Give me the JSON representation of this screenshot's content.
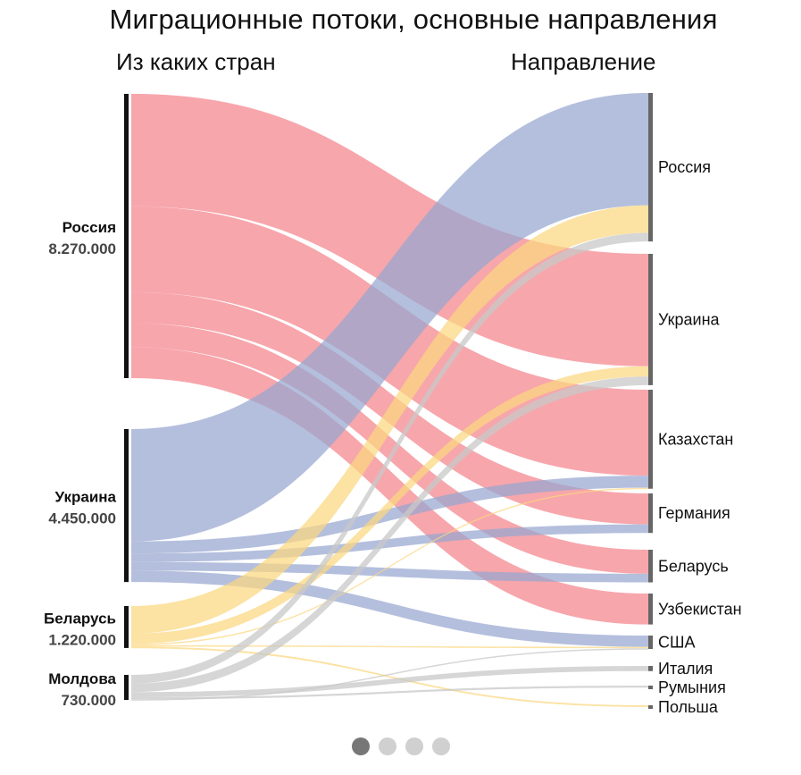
{
  "header": {
    "title": "Миграционные потоки, основные направления",
    "left_column": "Из каких стран",
    "right_column": "Направление"
  },
  "colors": {
    "Россия": "#f4848c",
    "Украина": "#97a6d0",
    "Беларусь": "#fbd77f",
    "Молдова": "#c8c8c8",
    "bar_source": "#111111",
    "bar_target": "#666666",
    "pager_active": "#777777",
    "pager_inactive": "#d0d0d0"
  },
  "chart_data": {
    "type": "sankey",
    "title": "Миграционные потоки, основные направления",
    "sources": [
      {
        "name": "Россия",
        "label": "Россия",
        "value_label": "8.270.000",
        "value": 8270000
      },
      {
        "name": "Украина",
        "label": "Украина",
        "value_label": "4.450.000",
        "value": 4450000
      },
      {
        "name": "Беларусь",
        "label": "Беларусь",
        "value_label": "1.220.000",
        "value": 1220000
      },
      {
        "name": "Молдова",
        "label": "Молдова",
        "value_label": "730.000",
        "value": 730000
      }
    ],
    "targets": [
      "Россия",
      "Украина",
      "Казахстан",
      "Германия",
      "Беларусь",
      "Узбекистан",
      "США",
      "Италия",
      "Румыния",
      "Польша"
    ],
    "flows": [
      {
        "from": "Россия",
        "to": "Украина",
        "value": 3270000
      },
      {
        "from": "Россия",
        "to": "Казахстан",
        "value": 2500000
      },
      {
        "from": "Россия",
        "to": "Германия",
        "value": 900000
      },
      {
        "from": "Россия",
        "to": "Беларусь",
        "value": 700000
      },
      {
        "from": "Россия",
        "to": "Узбекистан",
        "value": 900000
      },
      {
        "from": "Украина",
        "to": "Россия",
        "value": 3270000
      },
      {
        "from": "Украина",
        "to": "Казахстан",
        "value": 350000
      },
      {
        "from": "Украина",
        "to": "Германия",
        "value": 250000
      },
      {
        "from": "Украина",
        "to": "Беларусь",
        "value": 250000
      },
      {
        "from": "Украина",
        "to": "США",
        "value": 330000
      },
      {
        "from": "Беларусь",
        "to": "Россия",
        "value": 800000
      },
      {
        "from": "Беларусь",
        "to": "Украина",
        "value": 300000
      },
      {
        "from": "Беларусь",
        "to": "Казахстан",
        "value": 30000
      },
      {
        "from": "Беларусь",
        "to": "США",
        "value": 40000
      },
      {
        "from": "Беларусь",
        "to": "Польша",
        "value": 50000
      },
      {
        "from": "Молдова",
        "to": "Россия",
        "value": 250000
      },
      {
        "from": "Молдова",
        "to": "Украина",
        "value": 250000
      },
      {
        "from": "Молдова",
        "to": "Италия",
        "value": 150000
      },
      {
        "from": "Молдова",
        "to": "Румыния",
        "value": 60000
      },
      {
        "from": "Молдова",
        "to": "США",
        "value": 20000
      }
    ]
  },
  "pager": {
    "count": 4,
    "active": 1
  }
}
